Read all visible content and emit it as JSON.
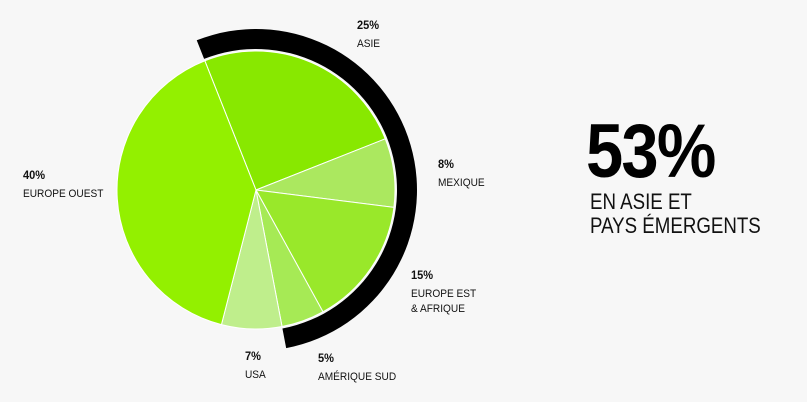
{
  "chart_data": {
    "type": "pie",
    "categories": [
      "ASIE",
      "MEXIQUE",
      "EUROPE EST\n& AFRIQUE",
      "AMÉRIQUE SUD",
      "USA",
      "EUROPE OUEST"
    ],
    "values": [
      25,
      8,
      15,
      5,
      7,
      40
    ],
    "value_labels": [
      "25%",
      "8%",
      "15%",
      "5%",
      "7%",
      "40%"
    ],
    "colors": [
      "#88e800",
      "#abe85f",
      "#99e82a",
      "#a6ea55",
      "#bfee8c",
      "#93f000"
    ],
    "highlight": {
      "value": 53,
      "label": "53%",
      "text": "EN ASIE ET\nPAYS ÉMERGENTS",
      "color": "#000000"
    }
  }
}
